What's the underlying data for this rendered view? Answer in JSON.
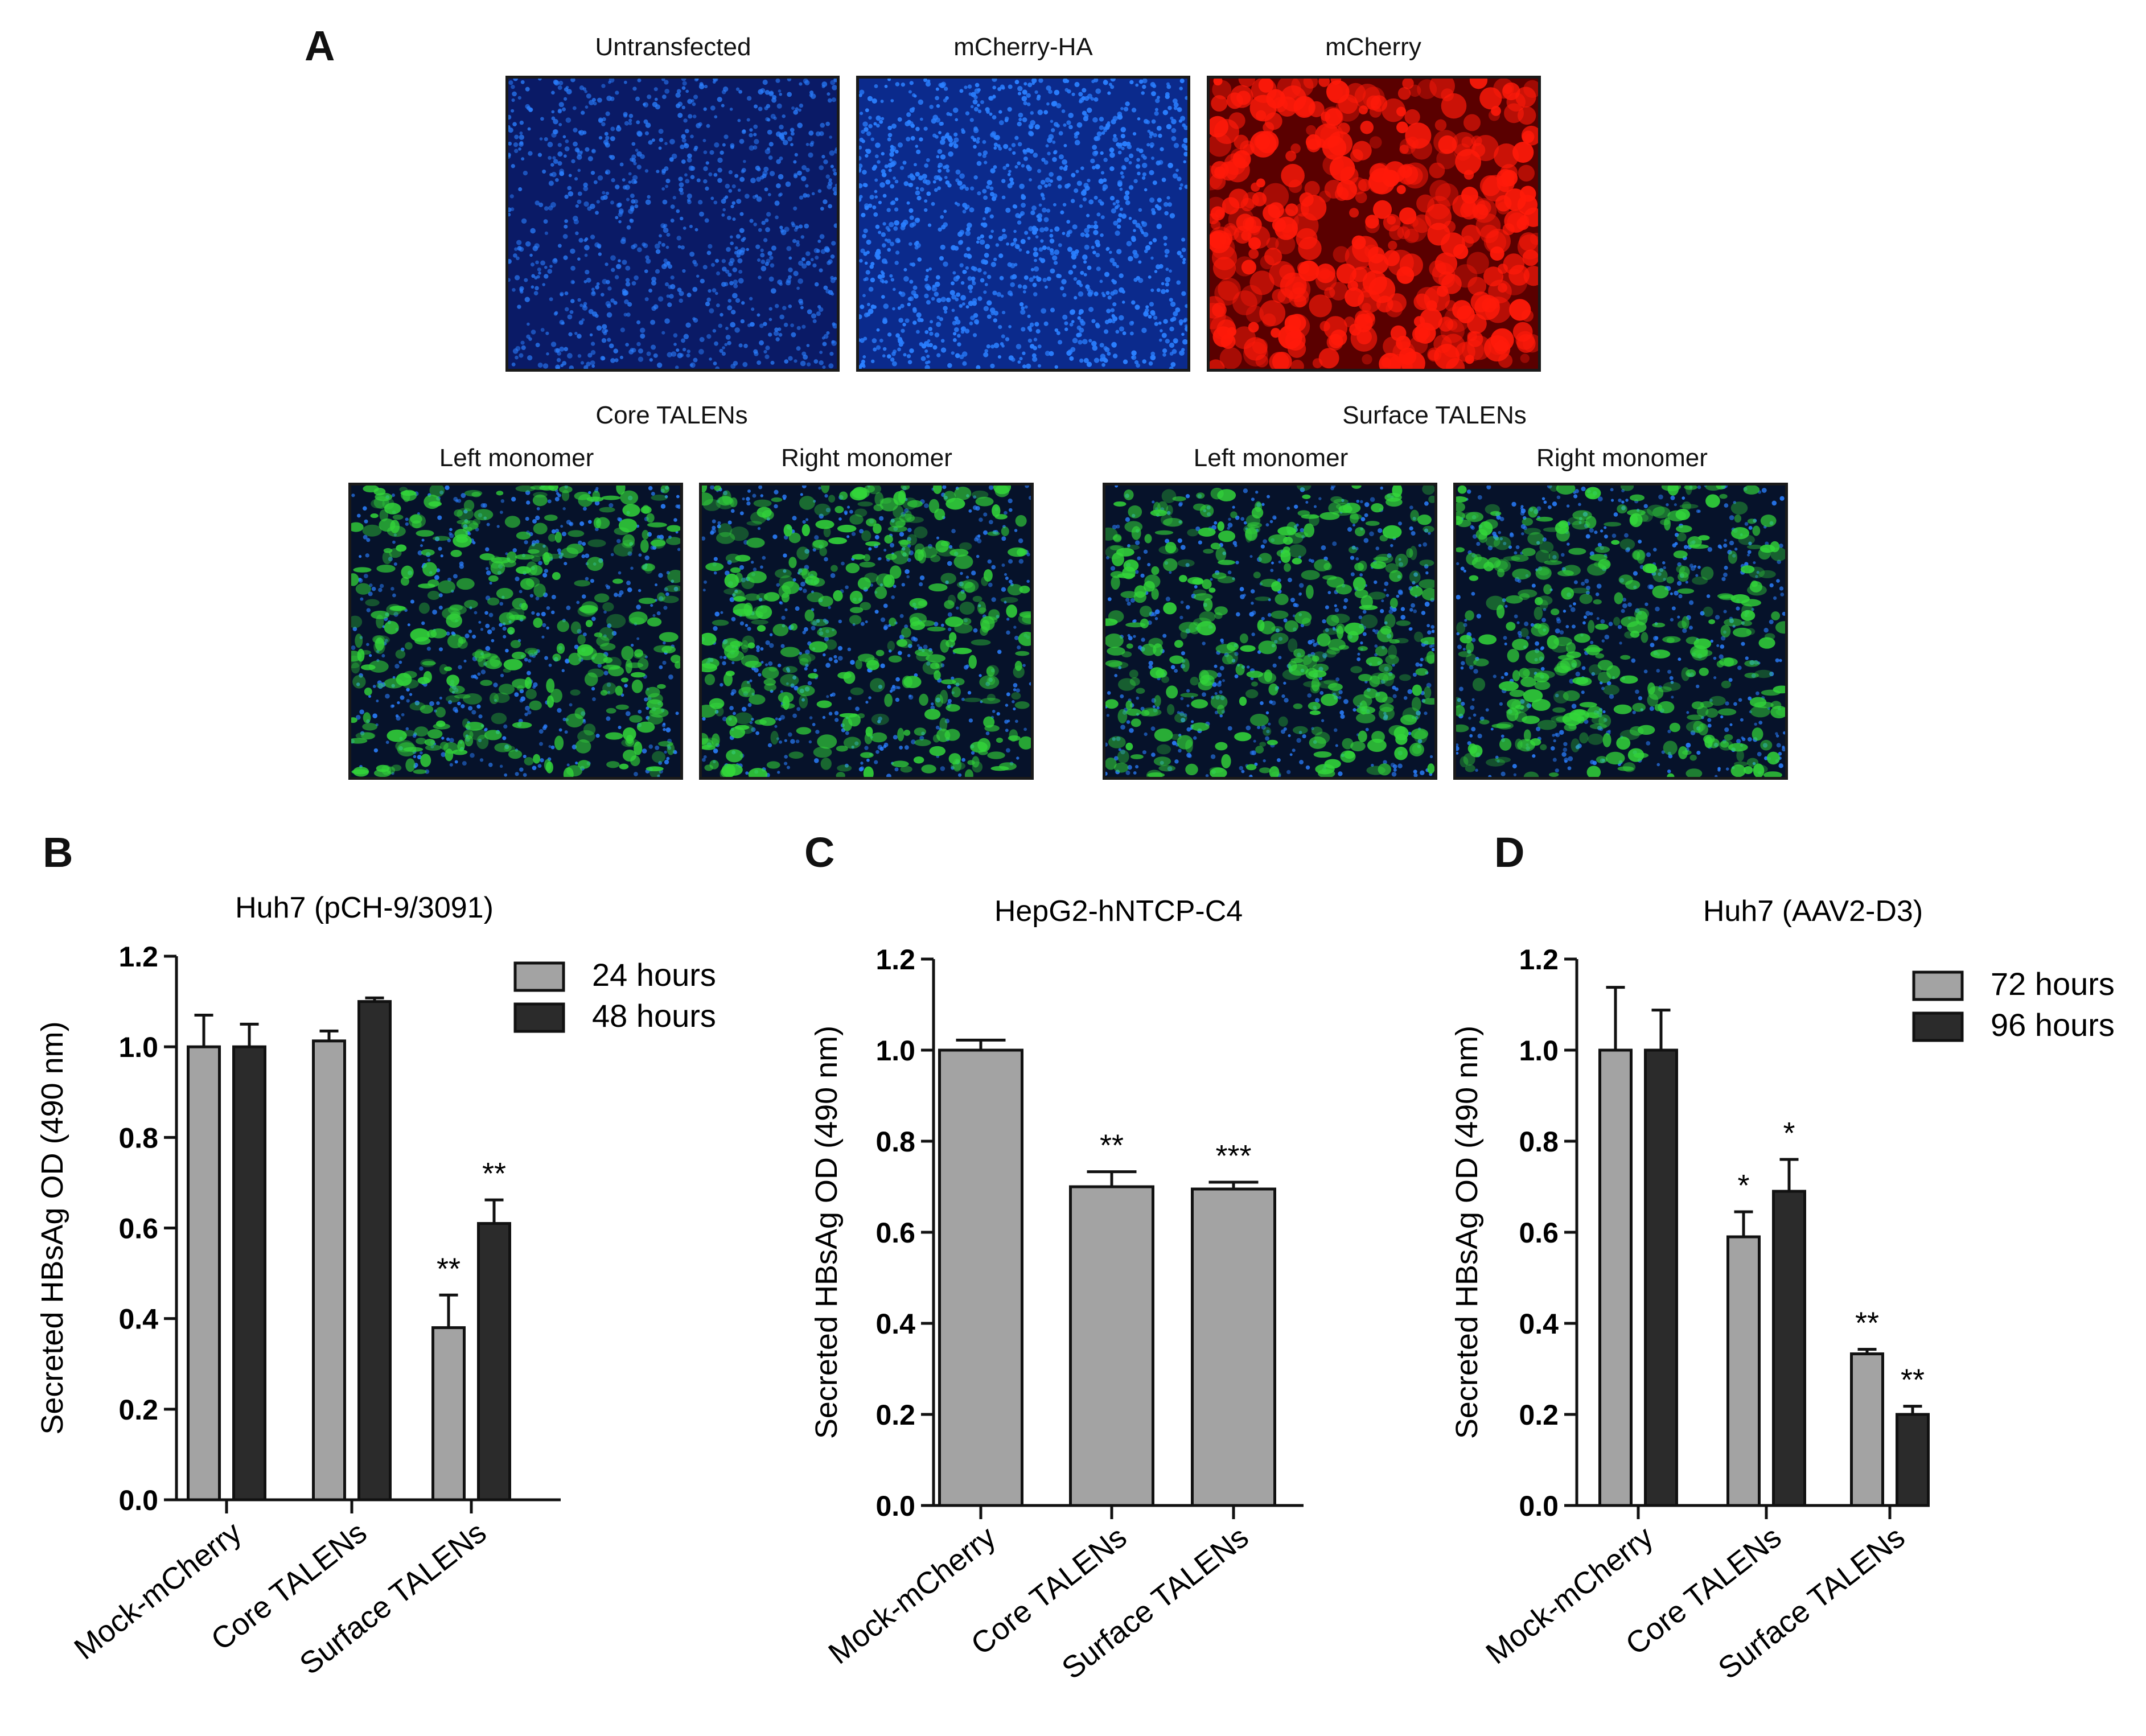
{
  "panel_a": {
    "letter": "A",
    "top_row": [
      {
        "title": "Untransfected",
        "stain": "dapi-dim"
      },
      {
        "title": "mCherry-HA",
        "stain": "dapi-bright"
      },
      {
        "title": "mCherry",
        "stain": "mcherry-red"
      }
    ],
    "core_group": {
      "title": "Core TALENs",
      "images": [
        {
          "title": "Left monomer",
          "stain": "gfp-merge"
        },
        {
          "title": "Right monomer",
          "stain": "gfp-merge"
        }
      ]
    },
    "surface_group": {
      "title": "Surface TALENs",
      "images": [
        {
          "title": "Left monomer",
          "stain": "gfp-merge"
        },
        {
          "title": "Right monomer",
          "stain": "gfp-merge"
        }
      ]
    },
    "colors": {
      "dapi": "#2a7fff",
      "dapi_bg": "#0a1a66",
      "red": "#ff1a0a",
      "red_bg": "#5a0000",
      "gfp": "#33d63a",
      "gfp_bg": "#06122a"
    }
  },
  "chart_data": [
    {
      "panel": "B",
      "type": "bar",
      "title": "Huh7 (pCH-9/3091)",
      "ylabel": "Secreted HBsAg OD (490 nm)",
      "ylim": [
        0,
        1.2
      ],
      "yticks": [
        "0.0",
        "0.2",
        "0.4",
        "0.6",
        "0.8",
        "1.0",
        "1.2"
      ],
      "categories": [
        "Mock-mCherry",
        "Core TALENs",
        "Surface TALENs"
      ],
      "series": [
        {
          "name": "24 hours",
          "color": "#a3a3a3",
          "values": [
            1.0,
            1.013,
            0.38
          ],
          "errors": [
            0.07,
            0.022,
            0.072
          ],
          "significance": [
            "",
            "",
            "**"
          ]
        },
        {
          "name": "48 hours",
          "color": "#2b2b2b",
          "values": [
            1.0,
            1.1,
            0.61
          ],
          "errors": [
            0.05,
            0.008,
            0.052
          ],
          "significance": [
            "",
            "",
            "**"
          ]
        }
      ],
      "legend": "top-right"
    },
    {
      "panel": "C",
      "type": "bar",
      "title": "HepG2-hNTCP-C4",
      "ylabel": "Secreted HBsAg OD (490 nm)",
      "ylim": [
        0,
        1.2
      ],
      "yticks": [
        "0.0",
        "0.2",
        "0.4",
        "0.6",
        "0.8",
        "1.0",
        "1.2"
      ],
      "categories": [
        "Mock-mCherry",
        "Core TALENs",
        "Surface TALENs"
      ],
      "series": [
        {
          "name": "",
          "color": "#a3a3a3",
          "values": [
            1.0,
            0.7,
            0.695
          ],
          "errors": [
            0.022,
            0.033,
            0.015
          ],
          "significance": [
            "",
            "**",
            "***"
          ]
        }
      ],
      "legend": "none"
    },
    {
      "panel": "D",
      "type": "bar",
      "title": "Huh7 (AAV2-D3)",
      "ylabel": "Secreted HBsAg OD (490 nm)",
      "ylim": [
        0,
        1.2
      ],
      "yticks": [
        "0.0",
        "0.2",
        "0.4",
        "0.6",
        "0.8",
        "1.0",
        "1.2"
      ],
      "categories": [
        "Mock-mCherry",
        "Core TALENs",
        "Surface TALENs"
      ],
      "series": [
        {
          "name": "72 hours",
          "color": "#a3a3a3",
          "values": [
            1.0,
            0.59,
            0.333
          ],
          "errors": [
            0.138,
            0.055,
            0.01
          ],
          "significance": [
            "",
            "*",
            "**"
          ]
        },
        {
          "name": "96 hours",
          "color": "#2b2b2b",
          "values": [
            1.0,
            0.69,
            0.2
          ],
          "errors": [
            0.088,
            0.07,
            0.018
          ],
          "significance": [
            "",
            "*",
            "**"
          ]
        }
      ],
      "legend": "top-right"
    }
  ]
}
